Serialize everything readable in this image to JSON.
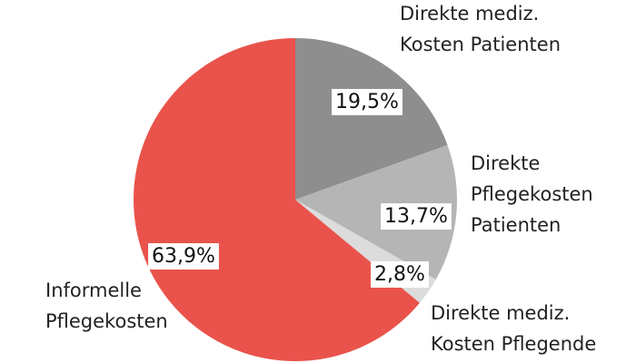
{
  "chart_data": {
    "type": "pie",
    "categories": [
      "Direkte mediz.\nKosten Patienten",
      "Direkte\nPflegekosten\nPatienten",
      "Direkte mediz.\nKosten Pflegende",
      "Informelle\nPflegekosten"
    ],
    "values": [
      19.5,
      13.7,
      2.8,
      63.9
    ],
    "value_labels": [
      "19,5%",
      "13,7%",
      "2,8%",
      "63,9%"
    ],
    "colors": [
      "#8e8e8e",
      "#b5b5b5",
      "#dcdcdc",
      "#e9534b"
    ]
  }
}
